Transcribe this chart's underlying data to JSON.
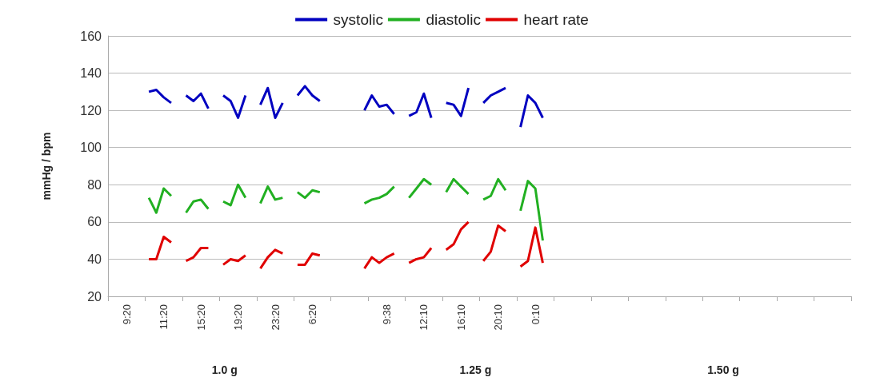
{
  "chart_data": {
    "type": "line",
    "ylabel": "mmHg / bpm",
    "categories": [
      null,
      null,
      "9:20",
      null,
      null,
      null,
      null,
      "11:20",
      null,
      null,
      null,
      null,
      "15:20",
      null,
      null,
      null,
      null,
      "19:20",
      null,
      null,
      null,
      null,
      "23:20",
      null,
      null,
      null,
      null,
      "6:20",
      null,
      null,
      null,
      null,
      null,
      null,
      null,
      null,
      null,
      "9:38",
      null,
      null,
      null,
      null,
      "12:10",
      null,
      null,
      null,
      null,
      "16:10",
      null,
      null,
      null,
      null,
      "20:10",
      null,
      null,
      null,
      null,
      "0:10",
      null,
      null,
      null,
      null,
      null,
      null,
      null,
      null,
      null,
      null,
      null,
      null,
      null,
      null,
      null,
      null,
      null,
      null,
      null,
      null,
      null,
      null,
      null,
      null,
      null,
      null,
      null,
      null,
      null,
      null,
      null,
      null,
      null,
      null,
      null,
      null,
      null,
      null,
      null,
      null,
      null,
      null
    ],
    "series": [
      {
        "name": "systolic",
        "color": "#0000c0",
        "values": [
          null,
          null,
          null,
          null,
          null,
          130,
          131,
          127,
          124,
          null,
          128,
          125,
          129,
          121,
          null,
          128,
          125,
          116,
          128,
          null,
          123,
          132,
          116,
          124,
          null,
          128,
          133,
          128,
          125,
          null,
          null,
          null,
          null,
          null,
          120,
          128,
          122,
          123,
          118,
          null,
          117,
          119,
          129,
          116,
          null,
          124,
          123,
          117,
          132,
          null,
          124,
          128,
          130,
          132,
          null,
          111,
          128,
          124,
          116,
          null,
          null,
          null,
          null,
          null,
          null,
          null,
          null,
          null,
          null,
          null,
          null,
          null,
          null,
          null,
          null,
          null,
          null,
          null,
          null,
          null,
          null,
          null,
          null,
          null,
          null,
          null,
          null,
          null,
          null,
          null,
          null,
          null,
          null,
          null,
          null,
          null,
          null,
          null,
          null,
          null
        ]
      },
      {
        "name": "diastolic",
        "color": "#22b022",
        "values": [
          null,
          null,
          null,
          null,
          null,
          73,
          65,
          78,
          74,
          null,
          65,
          71,
          72,
          67,
          null,
          71,
          69,
          80,
          73,
          null,
          70,
          79,
          72,
          73,
          null,
          76,
          73,
          77,
          76,
          null,
          null,
          null,
          null,
          null,
          70,
          72,
          73,
          75,
          79,
          null,
          73,
          78,
          83,
          80,
          null,
          76,
          83,
          79,
          75,
          null,
          72,
          74,
          83,
          77,
          null,
          66,
          82,
          78,
          50,
          null,
          null,
          null,
          null,
          null,
          null,
          null,
          null,
          null,
          null,
          null,
          null,
          null,
          null,
          null,
          null,
          null,
          null,
          null,
          null,
          null,
          null,
          null,
          null,
          null,
          null,
          null,
          null,
          null,
          null,
          null,
          null,
          null,
          null,
          null,
          null,
          null,
          null,
          null,
          null,
          null
        ]
      },
      {
        "name": "heart rate",
        "color": "#e00000",
        "values": [
          null,
          null,
          null,
          null,
          null,
          40,
          40,
          52,
          49,
          null,
          39,
          41,
          46,
          46,
          null,
          37,
          40,
          39,
          42,
          null,
          35,
          41,
          45,
          43,
          null,
          37,
          37,
          43,
          42,
          null,
          null,
          null,
          null,
          null,
          35,
          41,
          38,
          41,
          43,
          null,
          38,
          40,
          41,
          46,
          null,
          45,
          48,
          56,
          60,
          null,
          39,
          44,
          58,
          55,
          null,
          36,
          39,
          57,
          38,
          null,
          null,
          null,
          null,
          null,
          null,
          null,
          null,
          null,
          null,
          null,
          null,
          null,
          null,
          null,
          null,
          null,
          null,
          null,
          null,
          null,
          null,
          null,
          null,
          null,
          null,
          null,
          null,
          null,
          null,
          null,
          null,
          null,
          null,
          null,
          null,
          null,
          null,
          null,
          null,
          null
        ]
      }
    ],
    "ylim": [
      20,
      160
    ],
    "yticks": [
      20,
      40,
      60,
      80,
      100,
      120,
      140,
      160
    ],
    "grid": "y",
    "legend": "top",
    "marker": "none",
    "line_style": "solid",
    "annotations": [
      "1.0 g",
      "1.25 g",
      "1.50 g"
    ]
  }
}
